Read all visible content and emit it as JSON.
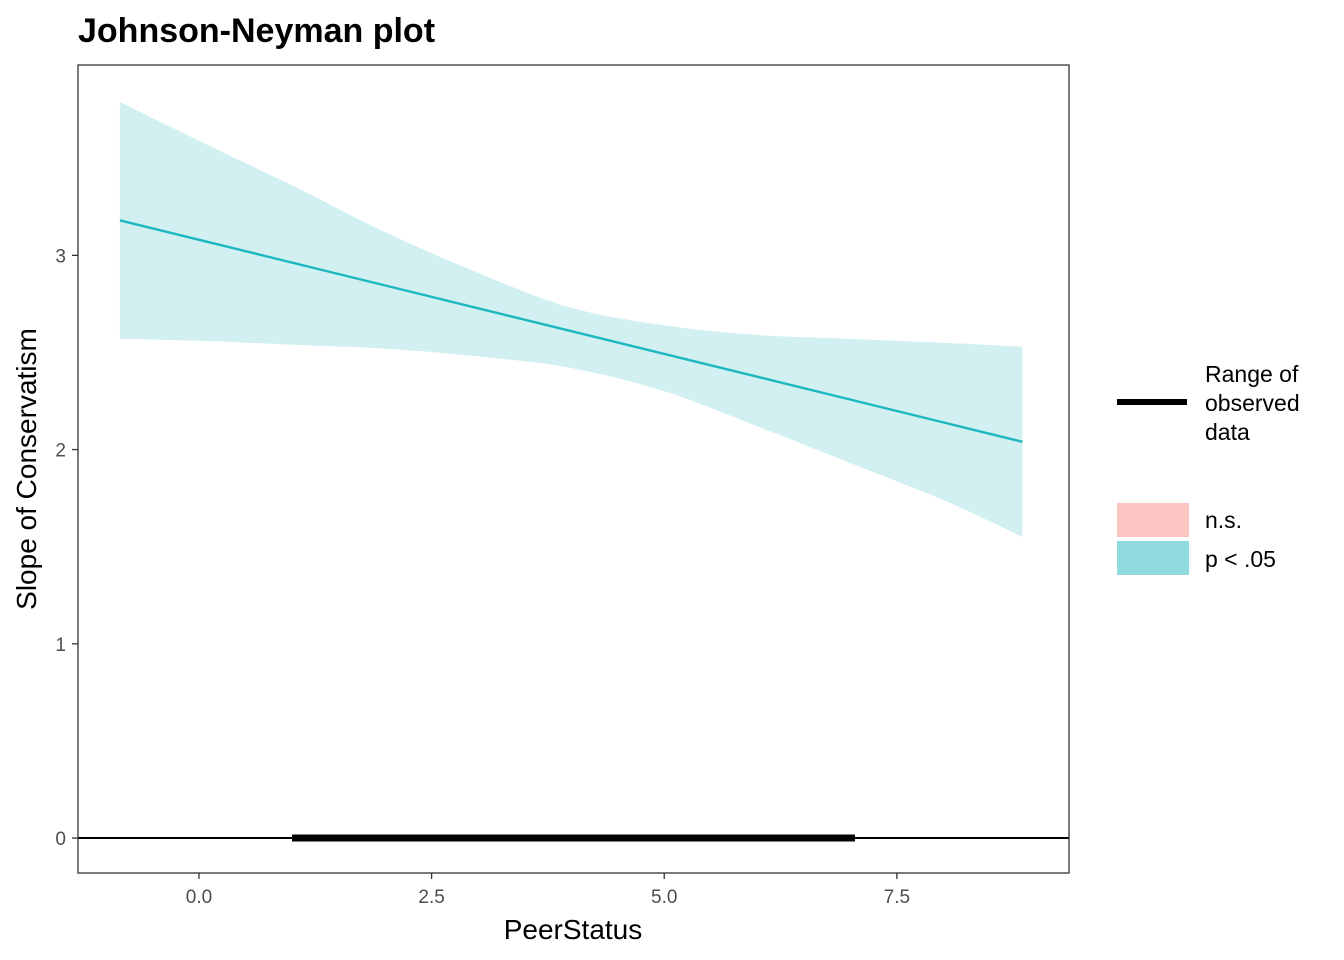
{
  "chart_data": {
    "type": "line",
    "title": "Johnson-Neyman plot",
    "xlabel": "PeerStatus",
    "ylabel": "Slope of Conservatism",
    "xlim": [
      -1.3,
      9.35
    ],
    "ylim": [
      -0.18,
      3.98
    ],
    "x_ticks": [
      0.0,
      2.5,
      5.0,
      7.5
    ],
    "x_tick_labels": [
      "0.0",
      "2.5",
      "5.0",
      "7.5"
    ],
    "y_ticks": [
      0,
      1,
      2,
      3
    ],
    "y_tick_labels": [
      "0",
      "1",
      "2",
      "3"
    ],
    "grid": false,
    "series": [
      {
        "role": "slope",
        "color": "#1db7c0",
        "x": [
          -0.85,
          8.85
        ],
        "y": [
          3.18,
          2.04
        ]
      }
    ],
    "confidence_band": {
      "color": "#d2f0f2",
      "x": [
        -0.85,
        0.0,
        1.0,
        2.0,
        3.0,
        4.0,
        5.0,
        6.0,
        7.0,
        8.0,
        8.85
      ],
      "lower": [
        2.57,
        2.56,
        2.54,
        2.52,
        2.48,
        2.42,
        2.3,
        2.12,
        1.93,
        1.74,
        1.55
      ],
      "upper": [
        3.79,
        3.59,
        3.36,
        3.12,
        2.91,
        2.73,
        2.64,
        2.59,
        2.57,
        2.55,
        2.53
      ]
    },
    "zero_line": {
      "y": 0,
      "color": "#000000"
    },
    "observed_range": {
      "x": [
        1.0,
        7.05
      ],
      "y": 0,
      "color": "#000000"
    },
    "legend": {
      "placement": "right",
      "line_entry": "Range of observed data",
      "line_entry_lines": [
        "Range of",
        "observed",
        "data"
      ],
      "fill_entries": [
        {
          "label": "n.s.",
          "color": "#fcc5c3"
        },
        {
          "label": "p < .05",
          "color": "#8fdbdf"
        }
      ]
    }
  }
}
